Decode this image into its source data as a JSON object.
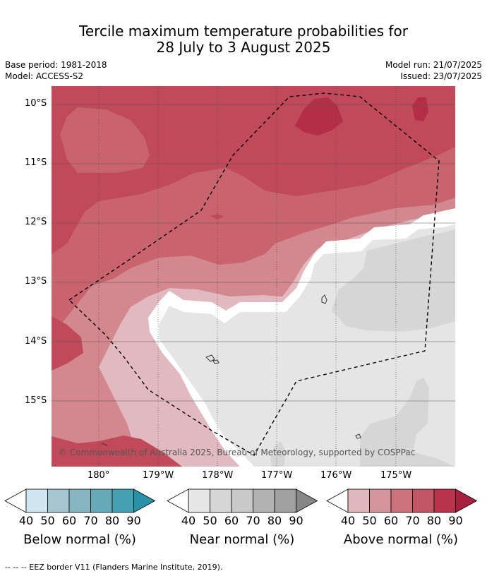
{
  "title": {
    "line1": "Tercile maximum temperature probabilities for",
    "line2": "28 July to 3 August 2025"
  },
  "meta": {
    "base_period": "Base period: 1981-2018",
    "model": "Model: ACCESS-S2",
    "model_run": "Model run: 21/07/2025",
    "issued": "Issued: 23/07/2025"
  },
  "map": {
    "lat_labels": [
      "10°S",
      "11°S",
      "12°S",
      "13°S",
      "14°S",
      "15°S"
    ],
    "lon_labels": [
      "180°",
      "179°W",
      "178°W",
      "177°W",
      "176°W",
      "175°W"
    ],
    "copyright": "© Commonwealth of Australia 2025, Bureau of Meteorology, supported by COSPPac",
    "colors": {
      "above_80": "#c04a59",
      "above_70": "#c9646f",
      "above_60": "#d3878f",
      "above_50": "#e2b9be",
      "above_90": "#b32f48",
      "near_40": "#e5e5e5",
      "near_50": "#d6d6d6",
      "border": "#000000"
    }
  },
  "colorbars": [
    {
      "name": "Below normal (%)",
      "ticks": [
        "40",
        "50",
        "60",
        "70",
        "80",
        "90"
      ],
      "colors": [
        "#ffffff",
        "#cfe6ee",
        "#a5c8d0",
        "#87b6c3",
        "#66a9b8",
        "#45a0b1",
        "#2891a8"
      ]
    },
    {
      "name": "Near normal (%)",
      "ticks": [
        "40",
        "50",
        "60",
        "70",
        "80",
        "90"
      ],
      "colors": [
        "#ffffff",
        "#e7e7e7",
        "#d6d6d6",
        "#c9c9c9",
        "#b3b3b3",
        "#a0a0a0",
        "#868686"
      ]
    },
    {
      "name": "Above normal (%)",
      "ticks": [
        "40",
        "50",
        "60",
        "70",
        "80",
        "90"
      ],
      "colors": [
        "#ffffff",
        "#e1b8bd",
        "#d4959c",
        "#cb727c",
        "#c15766",
        "#b7344c",
        "#a8203f"
      ]
    }
  ],
  "footnote": "--  --  -- EEZ border V11 (Flanders Marine Institute, 2019)."
}
